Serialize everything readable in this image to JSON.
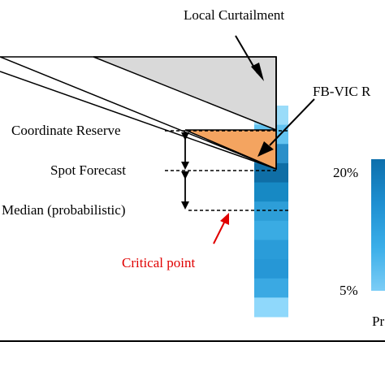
{
  "labels": {
    "local_curtailment": "Local Curtailment",
    "fb_vic": "FB-VIC R",
    "coordinate_reserve": "Coordinate Reserve",
    "spot_forecast": "Spot Forecast",
    "median": "Median (probabilistic)",
    "critical_point": "Critical point",
    "scale_high": "20%",
    "scale_low": "5%",
    "scale_caption": "Pr"
  },
  "colors": {
    "curtailment_fill": "#d9d9d9",
    "reserve_fill": "#f4a460",
    "critical_arrow": "#e00000",
    "dark_blue": "#0b6fb0",
    "mid_blue": "#1e9ae0",
    "light_blue": "#8fd8fb"
  },
  "heat_column_colors": [
    "#9adcf9",
    "#63c3f0",
    "#2a8fc9",
    "#0f6ea6",
    "#1789c4",
    "#2d9ed8",
    "#3aabe3",
    "#2a9cd9",
    "#2697d6",
    "#3aa9e3",
    "#8fd8fb"
  ],
  "scale_bar_colors": [
    "#0d6fac",
    "#1e8fd1",
    "#3aaee9",
    "#7ccdf6"
  ]
}
